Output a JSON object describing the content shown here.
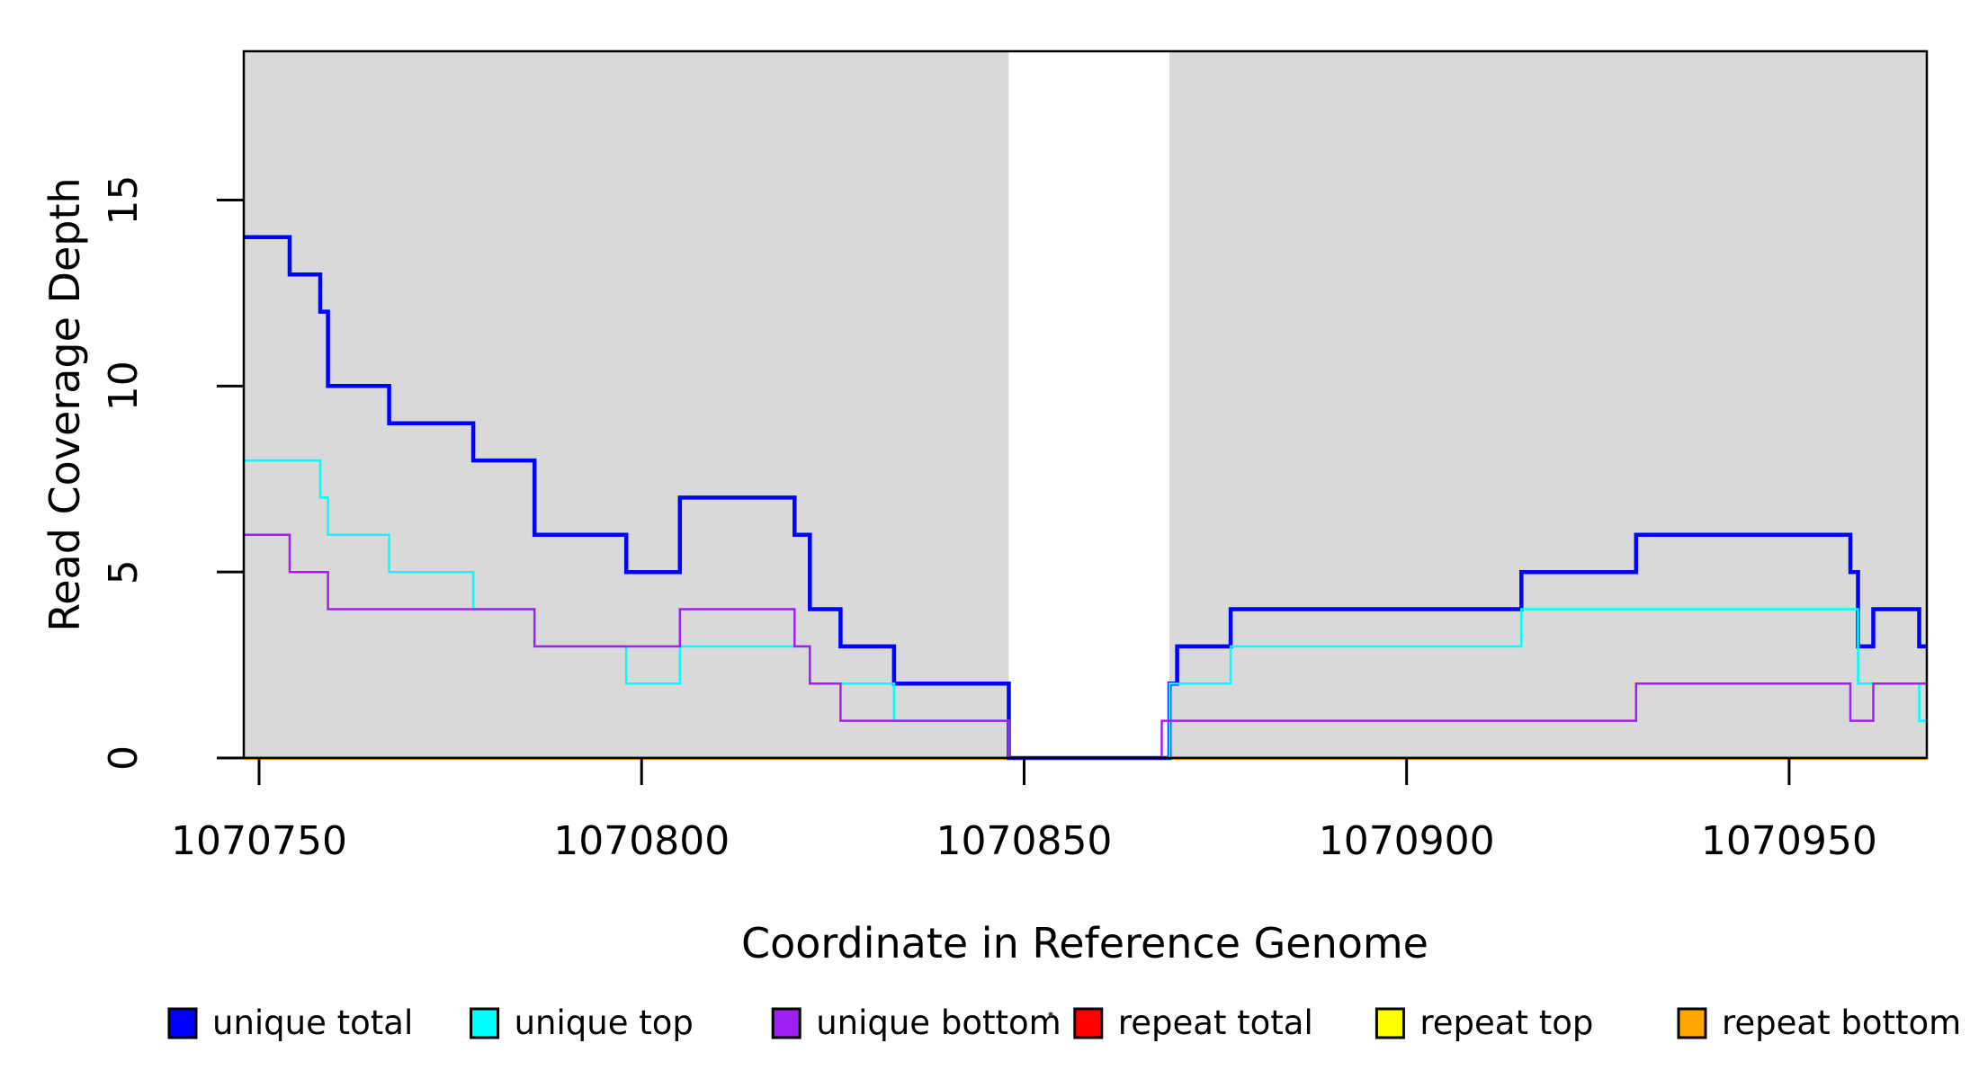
{
  "chart_data": {
    "type": "line",
    "subtype": "step-coverage-plot",
    "title": "",
    "xlabel": "Coordinate in Reference Genome",
    "ylabel": "Read Coverage Depth",
    "xlim": [
      1070748,
      1070968
    ],
    "ylim": [
      0,
      19
    ],
    "x_ticks": [
      1070750,
      1070800,
      1070850,
      1070900,
      1070950
    ],
    "y_ticks": [
      0,
      5,
      10,
      15
    ],
    "grid": false,
    "legend_position": "bottom",
    "background_shading": {
      "color": "#d9d9d9",
      "regions": [
        {
          "x_start": 1070748,
          "x_end": 1070848
        },
        {
          "x_start": 1070869,
          "x_end": 1070968
        }
      ],
      "white_gap": {
        "x_start": 1070848,
        "x_end": 1070869
      }
    },
    "series": [
      {
        "name": "unique total",
        "color": "#0000ff",
        "line_width": 4.5,
        "z": 4,
        "steps": [
          [
            1070748,
            14
          ],
          [
            1070754,
            13
          ],
          [
            1070758,
            12
          ],
          [
            1070759,
            10
          ],
          [
            1070767,
            9
          ],
          [
            1070778,
            8
          ],
          [
            1070786,
            6
          ],
          [
            1070798,
            5
          ],
          [
            1070805,
            7
          ],
          [
            1070820,
            6
          ],
          [
            1070822,
            4
          ],
          [
            1070826,
            3
          ],
          [
            1070833,
            2
          ],
          [
            1070848,
            0
          ],
          [
            1070869,
            2
          ],
          [
            1070870,
            3
          ],
          [
            1070877,
            4
          ],
          [
            1070915,
            5
          ],
          [
            1070930,
            6
          ],
          [
            1070958,
            5
          ],
          [
            1070959,
            3
          ],
          [
            1070961,
            4
          ],
          [
            1070967,
            3
          ],
          [
            1070968,
            3
          ]
        ]
      },
      {
        "name": "unique top",
        "color": "#00ffff",
        "line_width": 2.5,
        "z": 5,
        "steps": [
          [
            1070748,
            8
          ],
          [
            1070758,
            7
          ],
          [
            1070759,
            6
          ],
          [
            1070767,
            5
          ],
          [
            1070778,
            4
          ],
          [
            1070786,
            3
          ],
          [
            1070798,
            2
          ],
          [
            1070805,
            3
          ],
          [
            1070822,
            2
          ],
          [
            1070833,
            1
          ],
          [
            1070848,
            0
          ],
          [
            1070869,
            2
          ],
          [
            1070877,
            3
          ],
          [
            1070915,
            4
          ],
          [
            1070959,
            2
          ],
          [
            1070967,
            1
          ],
          [
            1070968,
            1
          ]
        ]
      },
      {
        "name": "unique bottom",
        "color": "#a020f0",
        "line_width": 2.5,
        "z": 6,
        "steps": [
          [
            1070748,
            6
          ],
          [
            1070754,
            5
          ],
          [
            1070759,
            4
          ],
          [
            1070786,
            3
          ],
          [
            1070805,
            4
          ],
          [
            1070820,
            3
          ],
          [
            1070822,
            2
          ],
          [
            1070826,
            1
          ],
          [
            1070848,
            0
          ],
          [
            1070868,
            1
          ],
          [
            1070930,
            2
          ],
          [
            1070958,
            1
          ],
          [
            1070961,
            2
          ],
          [
            1070968,
            2
          ]
        ]
      },
      {
        "name": "repeat total",
        "color": "#ff0000",
        "line_width": 4,
        "z": 1,
        "steps": [
          [
            1070748,
            0
          ],
          [
            1070968,
            0
          ]
        ]
      },
      {
        "name": "repeat top",
        "color": "#ffff00",
        "line_width": 4,
        "z": 2,
        "steps": [
          [
            1070748,
            0
          ],
          [
            1070968,
            0
          ]
        ]
      },
      {
        "name": "repeat bottom",
        "color": "#ffa500",
        "line_width": 4,
        "z": 3,
        "steps": [
          [
            1070748,
            0
          ],
          [
            1070968,
            0
          ]
        ]
      }
    ]
  },
  "colors": {
    "plot_border": "#000000",
    "tick": "#000000",
    "text": "#000000",
    "shading": "#d9d9d9",
    "background": "#ffffff"
  }
}
